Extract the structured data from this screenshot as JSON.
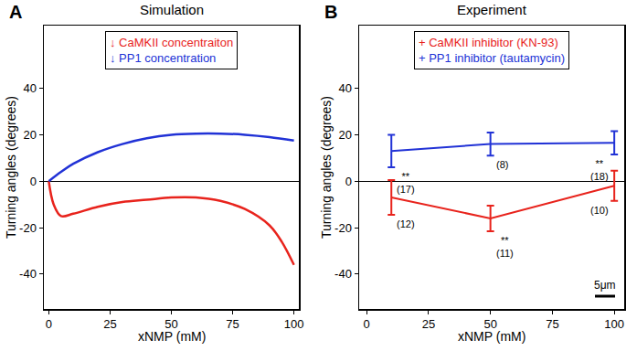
{
  "chart_data": [
    {
      "label": "A",
      "type": "line",
      "title": "Simulation",
      "x_label": "xNMP (mM)",
      "y_label": "Turning angles (degrees)",
      "xlim": [
        -2,
        102
      ],
      "xticks": [
        0,
        25,
        50,
        75,
        100
      ],
      "ylim": [
        -55,
        67
      ],
      "yticks": [
        -40,
        -20,
        0,
        20,
        40
      ],
      "legend": "top",
      "series": [
        {
          "name": "↓ CaMKII concentraiton",
          "color": "#e8231c",
          "x": [
            0,
            2,
            5,
            10,
            20,
            30,
            40,
            50,
            60,
            70,
            80,
            90,
            95,
            100
          ],
          "values": [
            0,
            -10,
            -15,
            -14,
            -11,
            -9,
            -8,
            -7,
            -7,
            -8.5,
            -12,
            -19,
            -26,
            -36
          ]
        },
        {
          "name": "↓ PP1 concentration",
          "color": "#2132d6",
          "x": [
            0,
            5,
            10,
            20,
            30,
            40,
            50,
            60,
            70,
            80,
            90,
            100
          ],
          "values": [
            0,
            4,
            7.5,
            12.5,
            16,
            18.5,
            20,
            20.5,
            20.5,
            20,
            19,
            17.5
          ]
        }
      ]
    },
    {
      "label": "B",
      "type": "line",
      "title": "Experiment",
      "x_label": "xNMP (mM)",
      "y_label": "Turning angles (degrees)",
      "xlim": [
        -3,
        104
      ],
      "xticks": [
        0,
        25,
        50,
        75,
        100
      ],
      "ylim": [
        -55,
        67
      ],
      "yticks": [
        -40,
        -20,
        0,
        20,
        40
      ],
      "legend": "top",
      "annotations": [
        "5μm"
      ],
      "series": [
        {
          "name": "+ CaMKII inhibitor (KN-93)",
          "color": "#e8231c",
          "x": [
            10,
            50,
            100
          ],
          "values": [
            -7,
            -16,
            -2
          ],
          "error": [
            7.5,
            5.5,
            6.5
          ],
          "point_labels": [
            [
              "(12)"
            ],
            [
              "**",
              "(11)"
            ],
            [
              "(10)"
            ]
          ]
        },
        {
          "name": "+ PP1 inhibitor (tautamycin)",
          "color": "#2132d6",
          "x": [
            10,
            50,
            100
          ],
          "values": [
            13,
            16,
            16.5
          ],
          "error": [
            7,
            5,
            5
          ],
          "point_labels": [
            [
              "**",
              "(17)"
            ],
            [
              "(8)"
            ],
            [
              "**",
              "(18)"
            ]
          ]
        }
      ]
    }
  ]
}
